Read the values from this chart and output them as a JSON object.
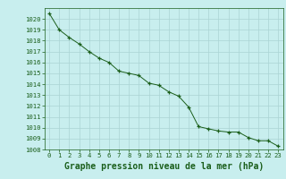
{
  "x": [
    0,
    1,
    2,
    3,
    4,
    5,
    6,
    7,
    8,
    9,
    10,
    11,
    12,
    13,
    14,
    15,
    16,
    17,
    18,
    19,
    20,
    21,
    22,
    23
  ],
  "y": [
    1020.5,
    1019.0,
    1018.3,
    1017.7,
    1017.0,
    1016.4,
    1016.0,
    1015.2,
    1015.0,
    1014.8,
    1014.1,
    1013.9,
    1013.3,
    1012.9,
    1011.9,
    1010.1,
    1009.9,
    1009.7,
    1009.6,
    1009.6,
    1009.1,
    1008.8,
    1008.8,
    1008.3
  ],
  "ylim": [
    1008,
    1021
  ],
  "xlim": [
    -0.5,
    23.5
  ],
  "yticks": [
    1008,
    1009,
    1010,
    1011,
    1012,
    1013,
    1014,
    1015,
    1016,
    1017,
    1018,
    1019,
    1020
  ],
  "xticks": [
    0,
    1,
    2,
    3,
    4,
    5,
    6,
    7,
    8,
    9,
    10,
    11,
    12,
    13,
    14,
    15,
    16,
    17,
    18,
    19,
    20,
    21,
    22,
    23
  ],
  "line_color": "#1a5e1a",
  "marker": "+",
  "marker_color": "#1a5e1a",
  "bg_color": "#c8eeee",
  "grid_color": "#aad4d4",
  "xlabel": "Graphe pression niveau de la mer (hPa)",
  "xlabel_color": "#1a5e1a",
  "tick_color": "#1a5e1a",
  "tick_fontsize": 5.2,
  "xlabel_fontsize": 7.0,
  "outer_bg": "#c8eeee",
  "spine_color": "#1a5e1a"
}
